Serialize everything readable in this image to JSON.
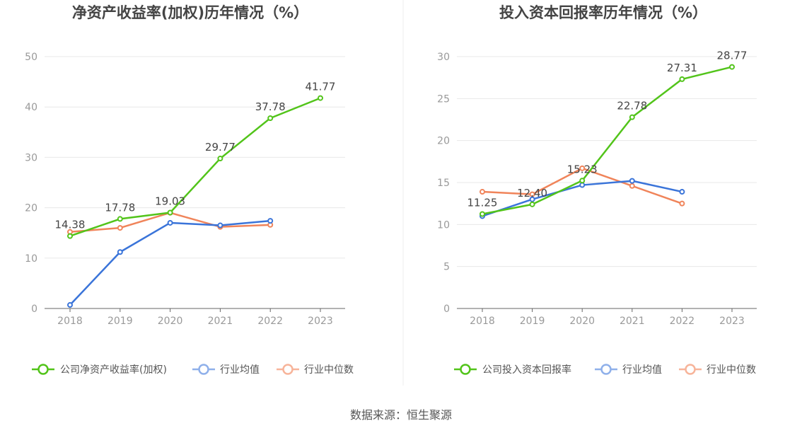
{
  "source": "数据来源：恒生聚源",
  "chart_data": [
    {
      "type": "line",
      "title": "净资产收益率(加权)历年情况（%）",
      "categories": [
        "2018",
        "2019",
        "2020",
        "2021",
        "2022",
        "2023"
      ],
      "ylim": [
        0,
        50
      ],
      "yticks": [
        "0",
        "10",
        "20",
        "30",
        "40",
        "50"
      ],
      "grid": true,
      "legend_position": "bottom",
      "series": [
        {
          "name": "公司净资产收益率(加权)",
          "color": "#52c41a",
          "values": [
            14.38,
            17.78,
            19.03,
            29.77,
            37.78,
            41.77
          ],
          "labels": [
            "14.38",
            "17.78",
            "19.03",
            "29.77",
            "37.78",
            "41.77"
          ]
        },
        {
          "name": "行业均值",
          "color": "#3a74d9",
          "values": [
            0.7,
            11.2,
            17.0,
            16.5,
            17.4,
            null
          ]
        },
        {
          "name": "行业中位数",
          "color": "#f0845a",
          "values": [
            15.2,
            16.0,
            19.0,
            16.2,
            16.6,
            null
          ]
        }
      ]
    },
    {
      "type": "line",
      "title": "投入资本回报率历年情况（%）",
      "categories": [
        "2018",
        "2019",
        "2020",
        "2021",
        "2022",
        "2023"
      ],
      "ylim": [
        0,
        30
      ],
      "yticks": [
        "0",
        "5",
        "10",
        "15",
        "20",
        "25",
        "30"
      ],
      "grid": true,
      "legend_position": "bottom",
      "series": [
        {
          "name": "公司投入资本回报率",
          "color": "#52c41a",
          "values": [
            11.25,
            12.4,
            15.23,
            22.78,
            27.31,
            28.77
          ],
          "labels": [
            "11.25",
            "12.40",
            "15.23",
            "22.78",
            "27.31",
            "28.77"
          ]
        },
        {
          "name": "行业均值",
          "color": "#3a74d9",
          "values": [
            11.0,
            13.0,
            14.7,
            15.2,
            13.9,
            null
          ]
        },
        {
          "name": "行业中位数",
          "color": "#f0845a",
          "values": [
            13.9,
            13.6,
            16.7,
            14.6,
            12.5,
            null
          ]
        }
      ]
    }
  ]
}
